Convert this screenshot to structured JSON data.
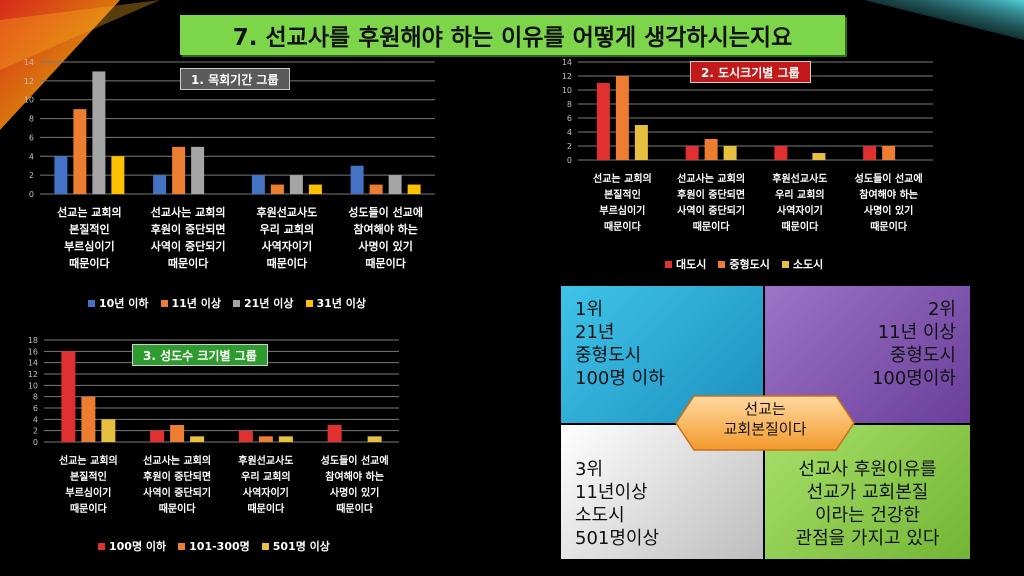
{
  "slide_title": "7. 선교사를 후원해야 하는 이유를 어떻게 생각하시는지요",
  "colors": {
    "blue": "#4472c4",
    "orange": "#ed7d31",
    "gray": "#a5a5a5",
    "gold": "#ffc000",
    "red": "#e03030",
    "mustard": "#e8c040",
    "green_title": "#7dd64a"
  },
  "chart_data": [
    {
      "type": "bar",
      "tag": "1. 목회기간 그룹",
      "categories": [
        "선교는 교회의\n본질적인\n부르심이기\n때문이다",
        "선교사는 교회의\n후원이 중단되면\n사역이 중단되기\n때문이다",
        "후원선교사도\n우리 교회의\n사역자이기\n때문이다",
        "성도들이 선교에\n참여해야 하는\n사명이 있기\n때문이다"
      ],
      "series": [
        {
          "name": "10년 이하",
          "color": "#4472c4",
          "values": [
            4,
            2,
            2,
            3
          ]
        },
        {
          "name": "11년 이상",
          "color": "#ed7d31",
          "values": [
            9,
            5,
            1,
            1
          ]
        },
        {
          "name": "21년 이상",
          "color": "#a5a5a5",
          "values": [
            13,
            5,
            2,
            2
          ]
        },
        {
          "name": "31년 이상",
          "color": "#ffc000",
          "values": [
            4,
            0,
            1,
            1
          ]
        }
      ],
      "ylim": [
        0,
        14
      ],
      "yticks": [
        "0",
        "2",
        "4",
        "6",
        "8",
        "10",
        "12",
        "14"
      ],
      "grid": true,
      "legend": "bottom"
    },
    {
      "type": "bar",
      "tag": "2. 도시크기별 그룹",
      "categories": [
        "선교는 교회의\n본질적인\n부르심이기\n때문이다",
        "선교사는 교회의\n후원이 중단되면\n사역이 중단되기\n때문이다",
        "후원선교사도\n우리 교회의\n사역자이기\n때문이다",
        "성도들이 선교에\n참여해야 하는\n사명이 있기\n때문이다"
      ],
      "series": [
        {
          "name": "대도시",
          "color": "#e03030",
          "values": [
            11,
            2,
            2,
            2
          ]
        },
        {
          "name": "중형도시",
          "color": "#ed7d31",
          "values": [
            12,
            3,
            0,
            2
          ]
        },
        {
          "name": "소도시",
          "color": "#e8c040",
          "values": [
            5,
            2,
            1,
            0
          ]
        }
      ],
      "ylim": [
        0,
        14
      ],
      "yticks": [
        "0",
        "2",
        "4",
        "6",
        "8",
        "10",
        "12",
        "14"
      ],
      "grid": true,
      "legend": "bottom"
    },
    {
      "type": "bar",
      "tag": "3. 성도수 크기별 그룹",
      "categories": [
        "선교는 교회의\n본질적인\n부르심이기\n때문이다",
        "선교사는 교회의\n후원이 중단되면\n사역이 중단되기\n때문이다",
        "후원선교사도\n우리 교회의\n사역자이기\n때문이다",
        "성도들이 선교에\n참여해야 하는\n사명이 있기\n때문이다"
      ],
      "series": [
        {
          "name": "100명 이하",
          "color": "#e03030",
          "values": [
            16,
            2,
            2,
            3
          ]
        },
        {
          "name": "101-300명",
          "color": "#ed7d31",
          "values": [
            8,
            3,
            1,
            0
          ]
        },
        {
          "name": "501명 이상",
          "color": "#e8c040",
          "values": [
            4,
            1,
            1,
            1
          ]
        }
      ],
      "ylim": [
        0,
        18
      ],
      "yticks": [
        "0",
        "2",
        "4",
        "6",
        "8",
        "10",
        "12",
        "14",
        "16",
        "18"
      ],
      "grid": true,
      "legend": "bottom"
    }
  ],
  "summary": {
    "q1": [
      "1위",
      "21년",
      "중형도시",
      "100명 이하"
    ],
    "q2": [
      "2위",
      "11년 이상",
      "중형도시",
      "100명이하"
    ],
    "q3": [
      "3위",
      "11년이상",
      "소도시",
      "501명이상"
    ],
    "q4": [
      "선교사 후원이유를",
      "선교가 교회본질",
      "이라는 건강한",
      "관점을 가지고 있다"
    ],
    "center": [
      "선교는",
      "교회본질이다"
    ]
  }
}
